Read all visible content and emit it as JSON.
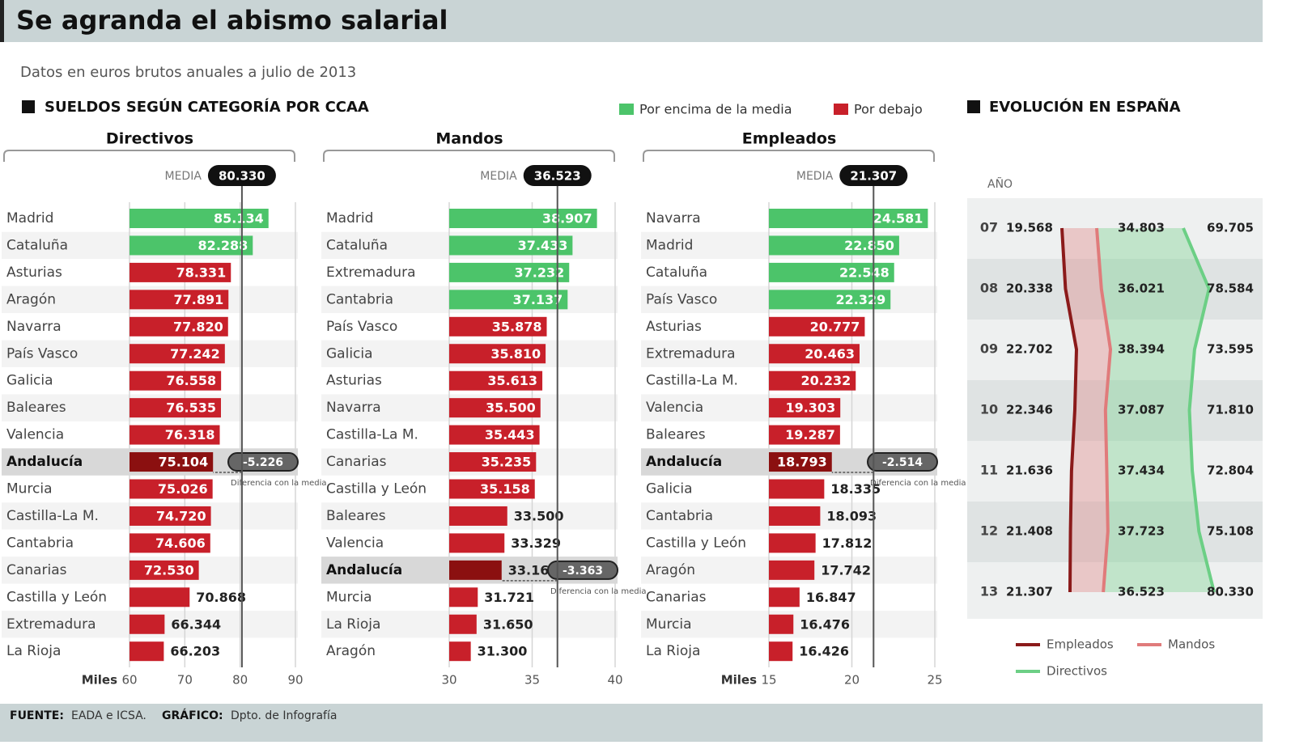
{
  "header": {
    "title": "Se agranda el abismo salarial",
    "subtitle": "Datos en euros brutos anuales a julio de 2013",
    "section": "SUELDOS SEGÚN CATEGORÍA POR CCAA",
    "legend": [
      {
        "name": "Por encima de la media",
        "color": "#4cc46a"
      },
      {
        "name": "Por debajo",
        "color": "#c8202a"
      }
    ]
  },
  "footer": {
    "source_label": "FUENTE:",
    "source": "EADA e ICSA.",
    "credit_label": "GRÁFICO:",
    "credit": "Dpto. de Infografía"
  },
  "chart_data": [
    {
      "type": "bar",
      "title": "Directivos",
      "xlabel": "Miles",
      "mean_text": "MEDIA",
      "mean": 80.33,
      "mean_label": "80.330",
      "highlight": "Andalucía",
      "difference": -5.226,
      "difference_label": "-5.226",
      "difference_text": "Diferencia con la media",
      "categories": [
        "Madrid",
        "Cataluña",
        "Asturias",
        "Aragón",
        "Navarra",
        "País Vasco",
        "Galicia",
        "Baleares",
        "Valencia",
        "Andalucía",
        "Murcia",
        "Castilla-La M.",
        "Cantabria",
        "Canarias",
        "Castilla y León",
        "Extremadura",
        "La Rioja"
      ],
      "values": [
        85.134,
        82.288,
        78.331,
        77.891,
        77.82,
        77.242,
        76.558,
        76.535,
        76.318,
        75.104,
        75.026,
        74.72,
        74.606,
        72.53,
        70.868,
        66.344,
        66.203
      ],
      "value_labels": [
        "85.134",
        "82.288",
        "78.331",
        "77.891",
        "77.820",
        "77.242",
        "76.558",
        "76.535",
        "76.318",
        "75.104",
        "75.026",
        "74.720",
        "74.606",
        "72.530",
        "70.868",
        "66.344",
        "66.203"
      ],
      "xlim": [
        60,
        90
      ],
      "xticks": [
        60,
        70,
        80,
        90
      ]
    },
    {
      "type": "bar",
      "title": "Mandos",
      "mean_text": "MEDIA",
      "mean": 36.523,
      "mean_label": "36.523",
      "highlight": "Andalucía",
      "difference": -3.363,
      "difference_label": "-3.363",
      "difference_text": "Diferencia con la media",
      "categories": [
        "Madrid",
        "Cataluña",
        "Extremadura",
        "Cantabria",
        "País Vasco",
        "Galicia",
        "Asturias",
        "Navarra",
        "Castilla-La M.",
        "Canarias",
        "Castilla y León",
        "Baleares",
        "Valencia",
        "Andalucía",
        "Murcia",
        "La Rioja",
        "Aragón"
      ],
      "values": [
        38.907,
        37.433,
        37.232,
        37.137,
        35.878,
        35.81,
        35.613,
        35.5,
        35.443,
        35.235,
        35.158,
        33.5,
        33.329,
        33.16,
        31.721,
        31.65,
        31.3
      ],
      "value_labels": [
        "38.907",
        "37.433",
        "37.232",
        "37.137",
        "35.878",
        "35.810",
        "35.613",
        "35.500",
        "35.443",
        "35.235",
        "35.158",
        "33.500",
        "33.329",
        "33.160",
        "31.721",
        "31.650",
        "31.300"
      ],
      "xlim": [
        30,
        40
      ],
      "xticks": [
        30,
        35,
        40
      ]
    },
    {
      "type": "bar",
      "title": "Empleados",
      "xlabel": "Miles",
      "mean_text": "MEDIA",
      "mean": 21.307,
      "mean_label": "21.307",
      "highlight": "Andalucía",
      "difference": -2.514,
      "difference_label": "-2.514",
      "difference_text": "Diferencia con la media",
      "categories": [
        "Navarra",
        "Madrid",
        "Cataluña",
        "País Vasco",
        "Asturias",
        "Extremadura",
        "Castilla-La M.",
        "Valencia",
        "Baleares",
        "Andalucía",
        "Galicia",
        "Cantabria",
        "Castilla y León",
        "Aragón",
        "Canarias",
        "Murcia",
        "La Rioja"
      ],
      "values": [
        24.581,
        22.85,
        22.548,
        22.329,
        20.777,
        20.463,
        20.232,
        19.303,
        19.287,
        18.793,
        18.335,
        18.093,
        17.812,
        17.742,
        16.847,
        16.476,
        16.426
      ],
      "value_labels": [
        "24.581",
        "22.850",
        "22.548",
        "22.329",
        "20.777",
        "20.463",
        "20.232",
        "19.303",
        "19.287",
        "18.793",
        "18.335",
        "18.093",
        "17.812",
        "17.742",
        "16.847",
        "16.476",
        "16.426"
      ],
      "xlim": [
        15,
        25
      ],
      "xticks": [
        15,
        20,
        25
      ]
    },
    {
      "type": "line",
      "title": "EVOLUCIÓN EN ESPAÑA",
      "ylabel": "AÑO",
      "categories": [
        "07",
        "08",
        "09",
        "10",
        "11",
        "12",
        "13"
      ],
      "series": [
        {
          "name": "Empleados",
          "color": "#8b1a1a",
          "values": [
            19.568,
            20.338,
            22.702,
            22.346,
            21.636,
            21.408,
            21.307
          ],
          "value_labels": [
            "19.568",
            "20.338",
            "22.702",
            "22.346",
            "21.636",
            "21.408",
            "21.307"
          ]
        },
        {
          "name": "Mandos",
          "color": "#e07b7b",
          "values": [
            34.803,
            36.021,
            38.394,
            37.087,
            37.434,
            37.723,
            36.523
          ],
          "value_labels": [
            "34.803",
            "36.021",
            "38.394",
            "37.087",
            "37.434",
            "37.723",
            "36.523"
          ]
        },
        {
          "name": "Directivos",
          "color": "#6ccf85",
          "values": [
            69.705,
            78.584,
            73.595,
            71.81,
            72.804,
            75.108,
            80.33
          ],
          "value_labels": [
            "69.705",
            "78.584",
            "73.595",
            "71.810",
            "72.804",
            "75.108",
            "80.330"
          ]
        }
      ]
    }
  ]
}
